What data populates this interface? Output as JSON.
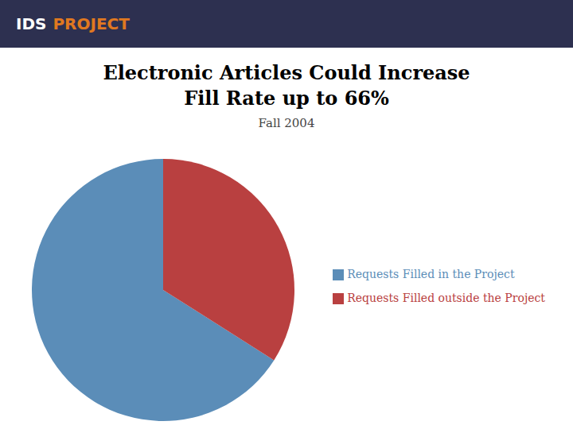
{
  "chart_data": {
    "type": "pie",
    "title": "Electronic Articles Could Increase\nFill Rate up to 66%",
    "subtitle": "Fall 2004",
    "annotations": [
      "IDS",
      "PROJECT"
    ],
    "categories": [
      "Requests Filled in the Project",
      "Requests Filled outside the Project"
    ],
    "values": [
      66,
      34
    ],
    "colors": [
      "#5B8DB8",
      "#B94040"
    ],
    "legend": "right"
  }
}
